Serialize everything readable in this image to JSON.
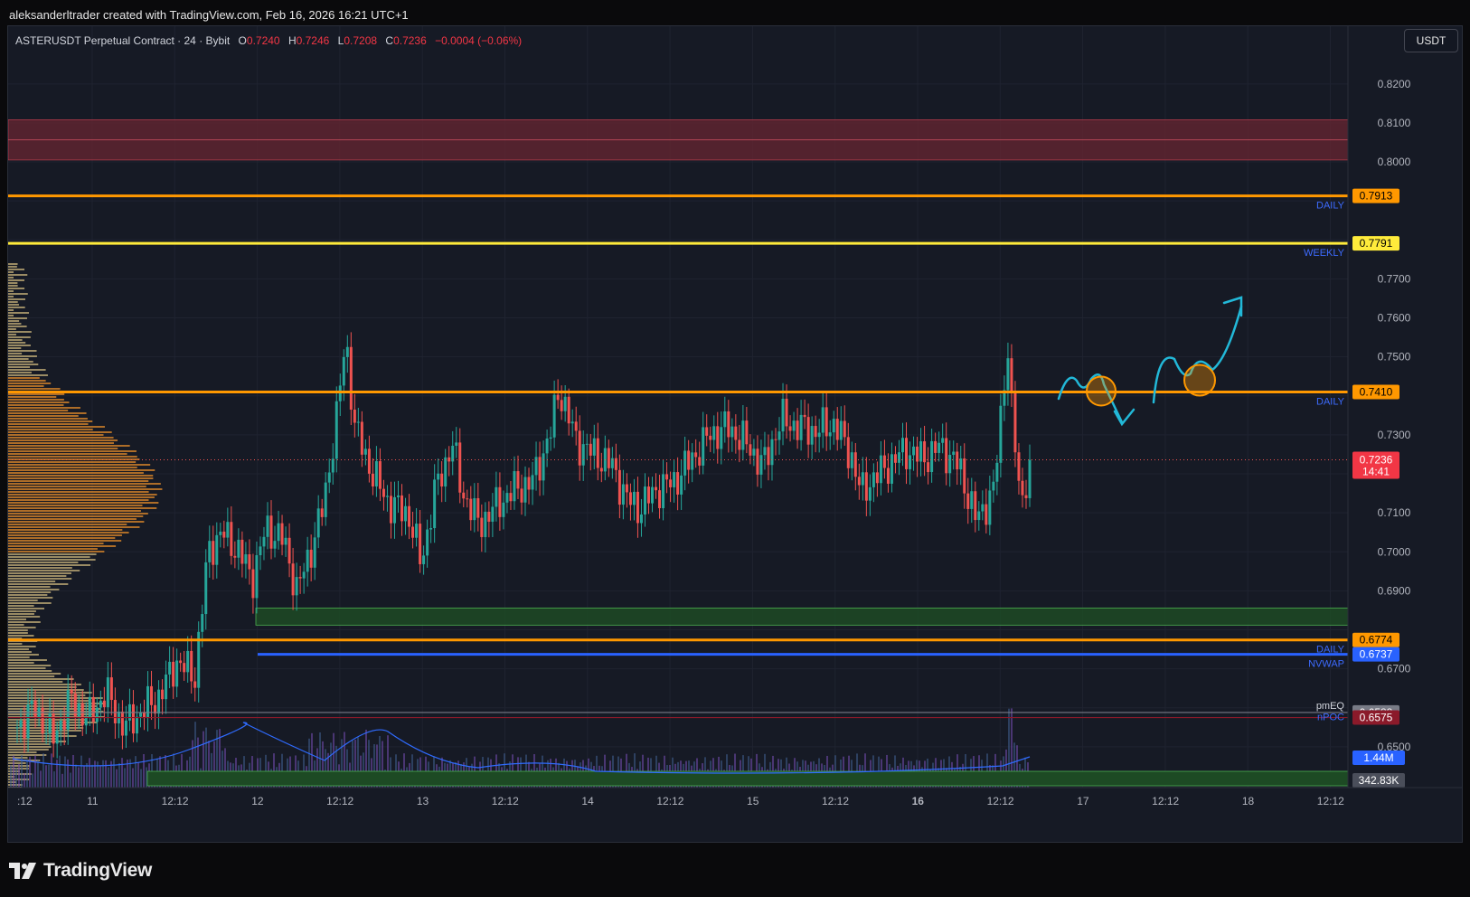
{
  "caption": "aleksanderltrader created with TradingView.com, Feb 16, 2026 16:21 UTC+1",
  "brand": "TradingView",
  "header": {
    "symbol": "ASTERUSDT Perpetual Contract · 24 · Bybit",
    "o_label": "O",
    "o": "0.7240",
    "h_label": "H",
    "h": "0.7246",
    "l_label": "L",
    "l": "0.7208",
    "c_label": "C",
    "c": "0.7236",
    "change": "−0.0004 (−0.06%)",
    "currency": "USDT"
  },
  "colors": {
    "background": "#161a25",
    "up": "#26a69a",
    "down": "#ef5350",
    "daily_level": "#ff9800",
    "weekly_level": "#ffeb3b",
    "nvwap": "#2962ff",
    "supply_zone": "#5e2430",
    "demand_zone": "#1d4a24",
    "annotation": "#22b8d8"
  },
  "axis_labels": [
    "0.8200",
    "0.8100",
    "0.8000",
    "0.7700",
    "0.7600",
    "0.7500",
    "0.7300",
    "0.7100",
    "0.7000",
    "0.6900",
    "0.6700",
    "0.6500"
  ],
  "level_tags": [
    {
      "price": 0.7913,
      "text": "0.7913",
      "bg": "#ff9800",
      "fg": "#000000",
      "tag": "DAILY"
    },
    {
      "price": 0.7791,
      "text": "0.7791",
      "bg": "#ffeb3b",
      "fg": "#000000",
      "tag": "WEEKLY"
    },
    {
      "price": 0.741,
      "text": "0.7410",
      "bg": "#ff9800",
      "fg": "#000000",
      "tag": "DAILY"
    },
    {
      "price": 0.6774,
      "text": "0.6774",
      "bg": "#ff9800",
      "fg": "#000000",
      "tag": "DAILY"
    },
    {
      "price": 0.6737,
      "text": "0.6737",
      "bg": "#2962ff",
      "fg": "#ffffff",
      "tag": "NVWAP"
    },
    {
      "price": 0.6588,
      "text": "0.6588",
      "bg": "#787b86",
      "fg": "#ffffff",
      "tag": "pmEQ"
    },
    {
      "price": 0.6575,
      "text": "0.6575",
      "bg": "#8b1a2a",
      "fg": "#ffffff",
      "tag": "nPOC"
    }
  ],
  "last_price": {
    "price": 0.7236,
    "text": "0.7236",
    "countdown": "14:41"
  },
  "volume_tags": [
    "1.44M",
    "342.83K"
  ],
  "time_labels": [
    ":12",
    "11",
    "12:12",
    "12",
    "12:12",
    "13",
    "12:12",
    "14",
    "12:12",
    "15",
    "12:12",
    "16",
    "12:12",
    "17",
    "12:12",
    "18",
    "12:12"
  ],
  "chart_data": {
    "type": "candlestick",
    "title": "ASTERUSDT Perpetual Contract · 24 · Bybit",
    "ylim": [
      0.64,
      0.8348
    ],
    "x_ticks": [
      ":12",
      "11",
      "12:12",
      "12",
      "12:12",
      "13",
      "12:12",
      "14",
      "12:12",
      "15",
      "12:12",
      "16",
      "12:12",
      "17",
      "12:12",
      "18",
      "12:12"
    ],
    "horizontal_levels": [
      {
        "name": "DAILY",
        "value": 0.7913
      },
      {
        "name": "WEEKLY",
        "value": 0.7791
      },
      {
        "name": "DAILY",
        "value": 0.741
      },
      {
        "name": "DAILY",
        "value": 0.6774
      },
      {
        "name": "NVWAP",
        "value": 0.6737
      },
      {
        "name": "pmEQ",
        "value": 0.6588
      },
      {
        "name": "nPOC",
        "value": 0.6575
      }
    ],
    "zones": [
      {
        "kind": "supply",
        "from": 0.8005,
        "to": 0.8108
      },
      {
        "kind": "demand",
        "from": 0.6812,
        "to": 0.6856
      }
    ],
    "last_close": 0.7236,
    "price_path": [
      [
        0.0,
        0.655
      ],
      [
        0.02,
        0.66
      ],
      [
        0.04,
        0.652
      ],
      [
        0.06,
        0.662
      ],
      [
        0.08,
        0.657
      ],
      [
        0.1,
        0.664
      ],
      [
        0.12,
        0.655
      ],
      [
        0.14,
        0.659
      ],
      [
        0.16,
        0.663
      ],
      [
        0.18,
        0.672
      ],
      [
        0.2,
        0.668
      ],
      [
        0.215,
        0.7
      ],
      [
        0.23,
        0.705
      ],
      [
        0.25,
        0.7
      ],
      [
        0.265,
        0.693
      ],
      [
        0.28,
        0.706
      ],
      [
        0.3,
        0.703
      ],
      [
        0.315,
        0.69
      ],
      [
        0.33,
        0.7
      ],
      [
        0.345,
        0.712
      ],
      [
        0.36,
        0.735
      ],
      [
        0.37,
        0.755
      ],
      [
        0.38,
        0.732
      ],
      [
        0.4,
        0.72
      ],
      [
        0.42,
        0.712
      ],
      [
        0.44,
        0.71
      ],
      [
        0.455,
        0.697
      ],
      [
        0.47,
        0.715
      ],
      [
        0.49,
        0.728
      ],
      [
        0.5,
        0.716
      ],
      [
        0.52,
        0.707
      ],
      [
        0.54,
        0.712
      ],
      [
        0.56,
        0.716
      ],
      [
        0.58,
        0.718
      ],
      [
        0.6,
        0.73
      ],
      [
        0.61,
        0.742
      ],
      [
        0.63,
        0.728
      ],
      [
        0.65,
        0.725
      ],
      [
        0.67,
        0.722
      ],
      [
        0.685,
        0.714
      ],
      [
        0.7,
        0.711
      ],
      [
        0.72,
        0.716
      ],
      [
        0.74,
        0.718
      ],
      [
        0.76,
        0.724
      ],
      [
        0.78,
        0.73
      ],
      [
        0.8,
        0.732
      ],
      [
        0.82,
        0.728
      ],
      [
        0.84,
        0.722
      ],
      [
        0.86,
        0.734
      ],
      [
        0.88,
        0.732
      ],
      [
        0.9,
        0.731
      ],
      [
        0.92,
        0.733
      ],
      [
        0.94,
        0.724
      ],
      [
        0.95,
        0.715
      ],
      [
        0.96,
        0.718
      ],
      [
        0.98,
        0.722
      ],
      [
        1.0,
        0.726
      ],
      [
        1.02,
        0.724
      ],
      [
        1.04,
        0.727
      ],
      [
        1.06,
        0.722
      ],
      [
        1.08,
        0.708
      ],
      [
        1.1,
        0.716
      ],
      [
        1.115,
        0.754
      ],
      [
        1.12,
        0.735
      ],
      [
        1.13,
        0.712
      ],
      [
        1.14,
        0.7236
      ]
    ]
  }
}
